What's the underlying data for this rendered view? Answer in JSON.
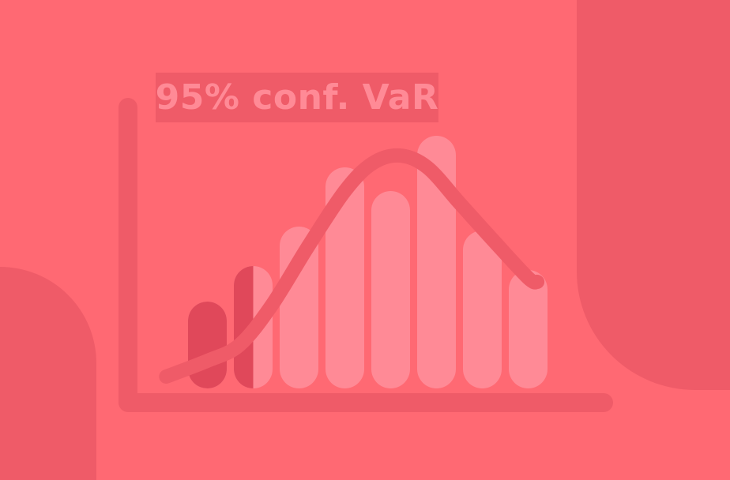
{
  "title": "95% conf. VaR",
  "colors": {
    "background": "#ff6973",
    "decoration": "#ef5b68",
    "bar": "#ff8a96",
    "tail_bar": "#e0485a",
    "curve": "#ef5b68",
    "axis": "#ef5b68",
    "title_box": "#ef5b68",
    "title_text": "#ff8a96"
  },
  "chart_data": {
    "type": "bar",
    "values": [
      22,
      31,
      41,
      56,
      50,
      64,
      40,
      30
    ],
    "tail_fraction": [
      1,
      0.5,
      0,
      0,
      0,
      0,
      0,
      0
    ],
    "ylim": [
      0,
      70
    ],
    "curve": [
      [
        -0.9,
        3
      ],
      [
        0,
        7
      ],
      [
        0.7,
        11
      ],
      [
        1.4,
        21
      ],
      [
        2.2,
        36
      ],
      [
        3.0,
        50
      ],
      [
        3.6,
        57
      ],
      [
        4.2,
        59
      ],
      [
        4.8,
        56
      ],
      [
        5.5,
        47
      ],
      [
        6.2,
        38
      ],
      [
        7.0,
        28
      ],
      [
        7.2,
        27
      ]
    ],
    "grid": false,
    "legend": "none"
  }
}
